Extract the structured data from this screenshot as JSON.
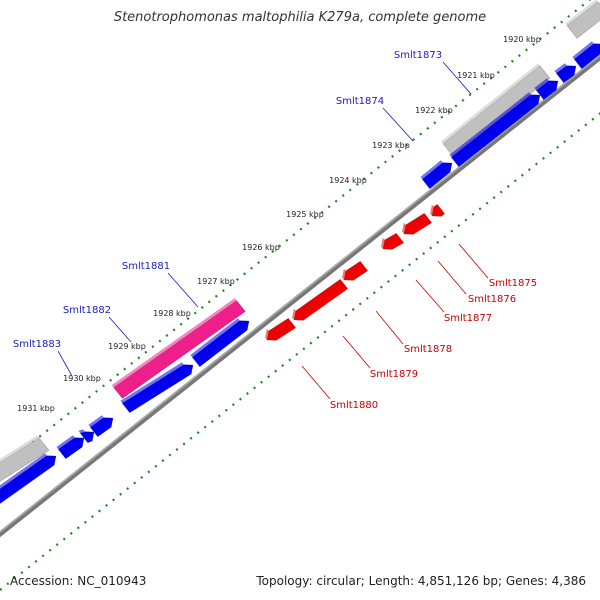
{
  "title": "Stenotrophomonas maltophilia K279a, complete genome",
  "footer": {
    "accession": "Accession: NC_010943",
    "topology": "Topology: circular; Length: 4,851,126 bp; Genes: 4,386"
  },
  "colors": {
    "forward_cds": "#0000ee",
    "reverse_cds": "#ee0000",
    "highlight_cds": "#ee1f8a",
    "pseudogene": "#c0c0c0",
    "backbone": "#777777",
    "tick": "#1a8a1a",
    "forward_label": "#1a1acc",
    "reverse_label": "#cc0000"
  },
  "ticks": [
    "1920 kbp",
    "1921 kbp",
    "1922 kbp",
    "1923 kbp",
    "1924 kbp",
    "1925 kbp",
    "1926 kbp",
    "1927 kbp",
    "1928 kbp",
    "1929 kbp",
    "1930 kbp",
    "1931 kbp"
  ],
  "forward_genes": [
    "Smlt1873",
    "Smlt1874",
    "Smlt1881",
    "Smlt1882",
    "Smlt1883"
  ],
  "reverse_genes": [
    "Smlt1875",
    "Smlt1876",
    "Smlt1877",
    "Smlt1878",
    "Smlt1879",
    "Smlt1880"
  ]
}
